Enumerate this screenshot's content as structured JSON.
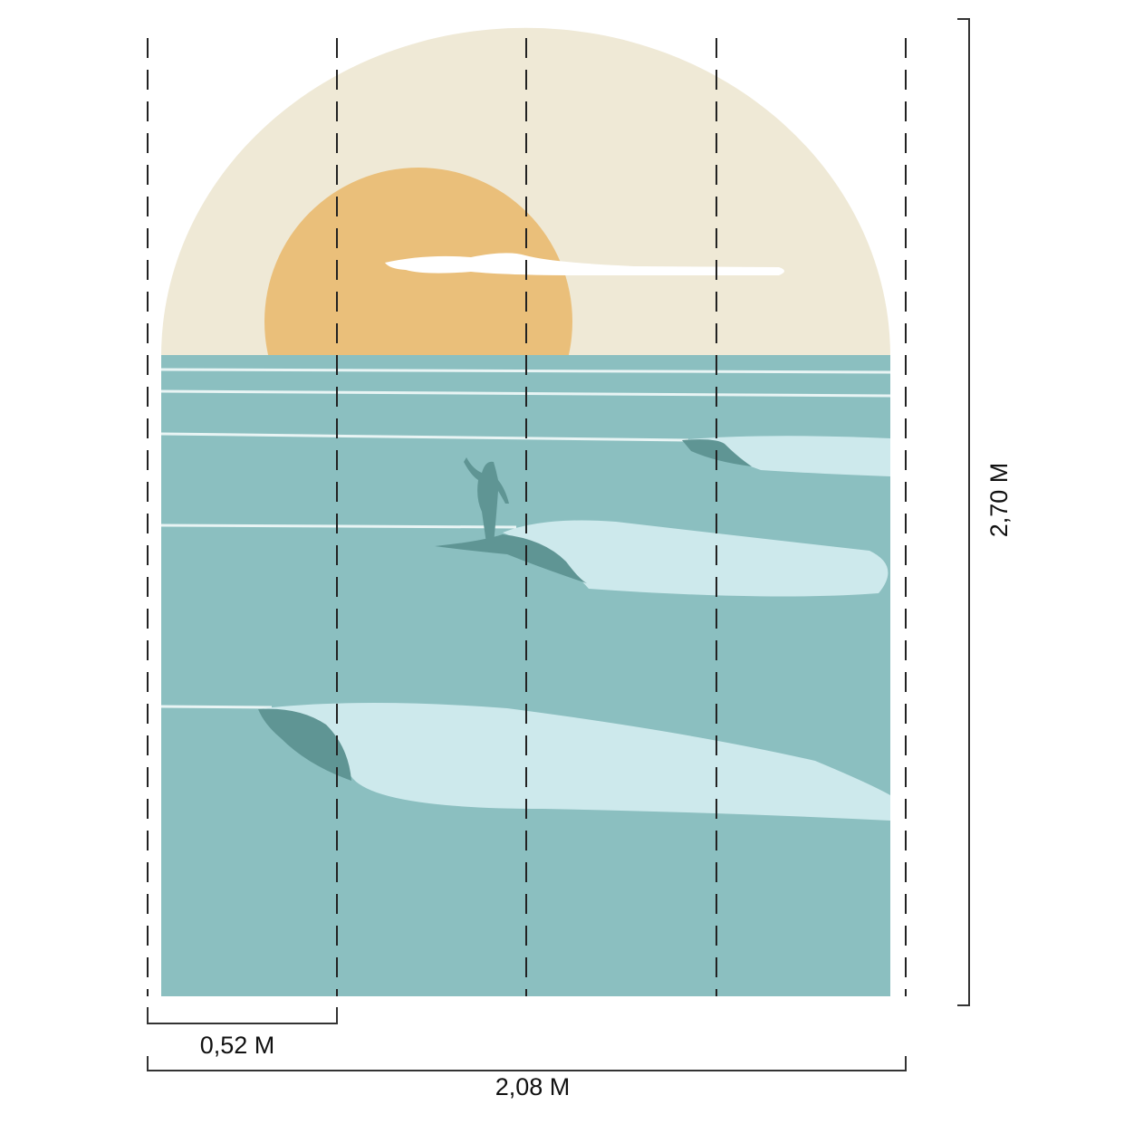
{
  "dimensions": {
    "panel_width": "0,52 M",
    "total_width": "2,08 M",
    "height": "2,70 M"
  }
}
